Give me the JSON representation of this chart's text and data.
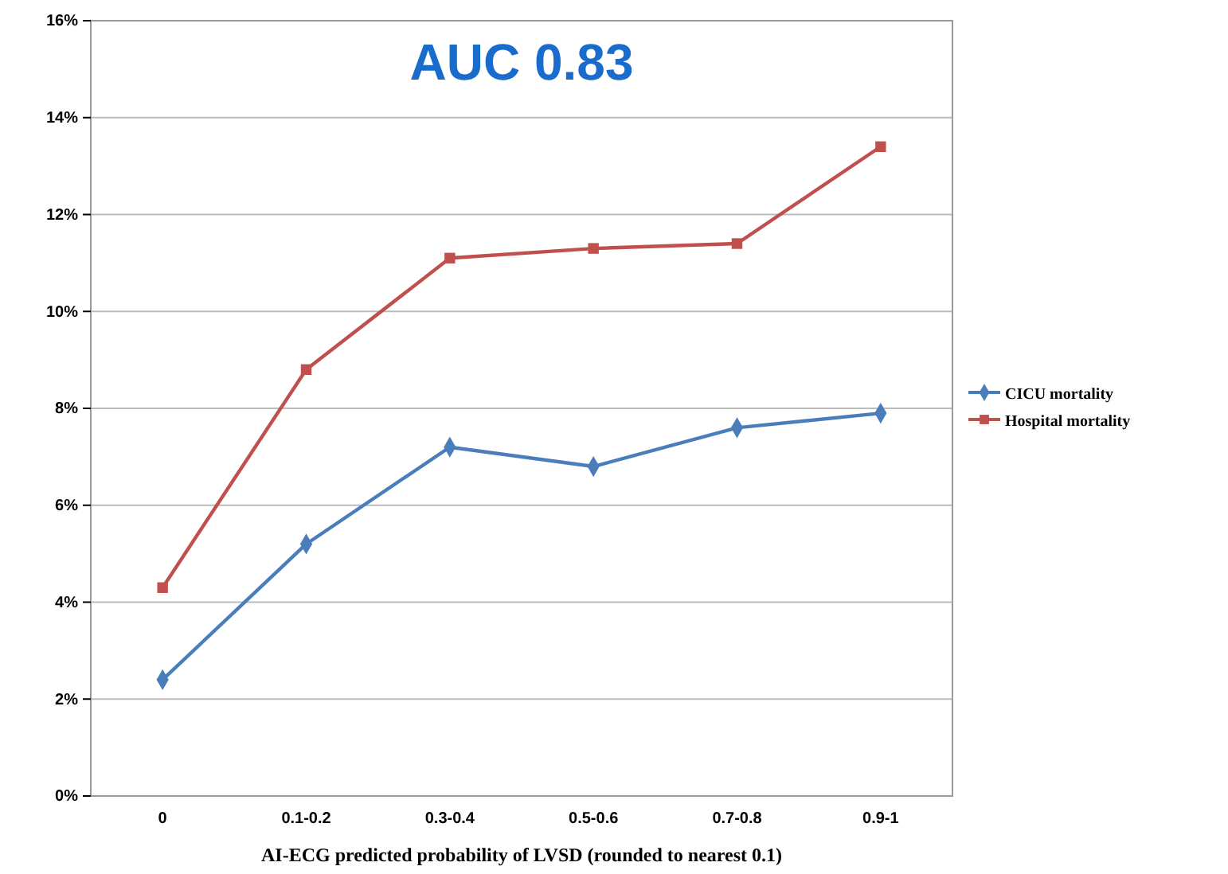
{
  "chart_data": {
    "type": "line",
    "title": "AUC 0.83",
    "xlabel": "AI-ECG predicted probability of LVSD (rounded to nearest 0.1)",
    "categories": [
      "0",
      "0.1-0.2",
      "0.3-0.4",
      "0.5-0.6",
      "0.7-0.8",
      "0.9-1"
    ],
    "series": [
      {
        "name": "CICU mortality",
        "color": "#4a7ebb",
        "marker": "diamond",
        "values": [
          2.4,
          5.2,
          7.2,
          6.8,
          7.6,
          7.9
        ]
      },
      {
        "name": "Hospital mortality",
        "color": "#c0504d",
        "marker": "square",
        "values": [
          4.3,
          8.8,
          11.1,
          11.3,
          11.4,
          13.4
        ]
      }
    ],
    "ylim": [
      0,
      16
    ],
    "yticks": [
      {
        "value": 0,
        "label": "0%"
      },
      {
        "value": 2,
        "label": "2%"
      },
      {
        "value": 4,
        "label": "4%"
      },
      {
        "value": 6,
        "label": "6%"
      },
      {
        "value": 8,
        "label": "8%"
      },
      {
        "value": 10,
        "label": "10%"
      },
      {
        "value": 12,
        "label": "12%"
      },
      {
        "value": 14,
        "label": "14%"
      },
      {
        "value": 16,
        "label": "16%"
      }
    ],
    "grid": "y",
    "legend": "right",
    "line_style": "solid"
  }
}
